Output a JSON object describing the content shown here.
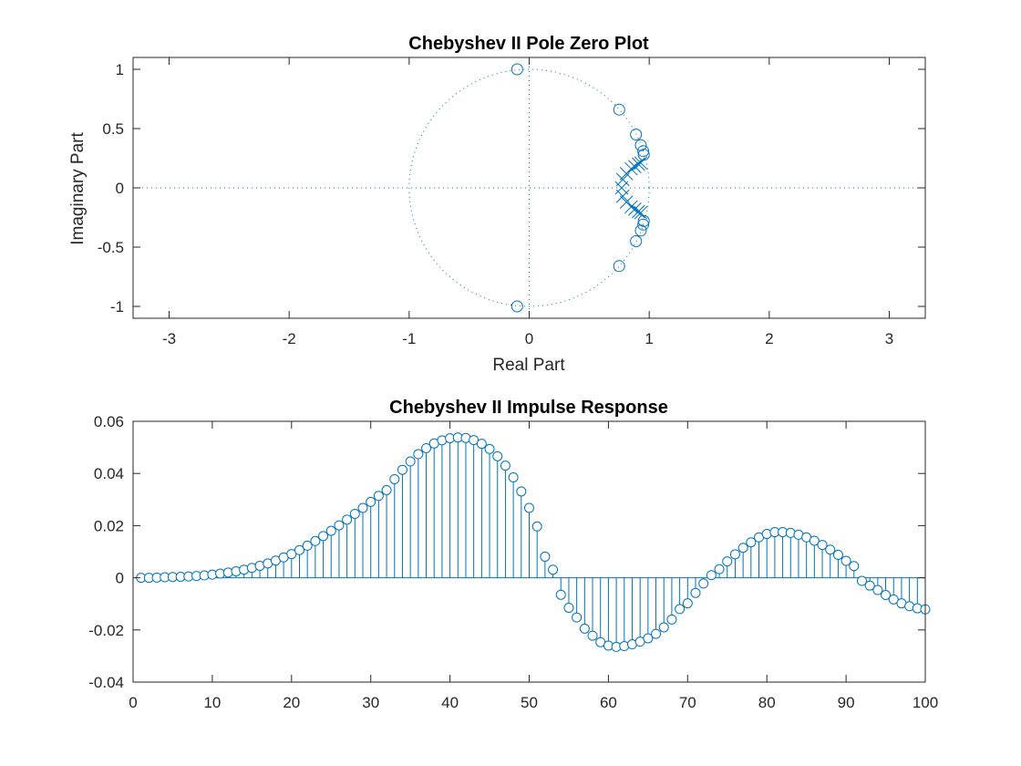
{
  "chart_data": [
    {
      "type": "scatter",
      "subtype": "pole-zero",
      "title": "Chebyshev II Pole Zero Plot",
      "xlabel": "Real Part",
      "ylabel": "Imaginary Part",
      "xlim": [
        -3.3,
        3.3
      ],
      "ylim": [
        -1.1,
        1.1
      ],
      "xticks": [
        -3,
        -2,
        -1,
        0,
        1,
        2,
        3
      ],
      "yticks": [
        -1,
        -0.5,
        0,
        0.5,
        1
      ],
      "xtick_labels": [
        "-3",
        "-2",
        "-1",
        "0",
        "1",
        "2",
        "3"
      ],
      "ytick_labels": [
        "-1",
        "-0.5",
        "0",
        "0.5",
        "1"
      ],
      "unit_circle": true,
      "zeros": [
        [
          -0.1,
          1.0
        ],
        [
          -0.1,
          -1.0
        ],
        [
          0.75,
          0.66
        ],
        [
          0.75,
          -0.66
        ],
        [
          0.89,
          0.45
        ],
        [
          0.89,
          -0.45
        ],
        [
          0.93,
          0.36
        ],
        [
          0.93,
          -0.36
        ],
        [
          0.95,
          0.31
        ],
        [
          0.95,
          -0.31
        ],
        [
          0.955,
          0.28
        ],
        [
          0.955,
          -0.28
        ]
      ],
      "poles": [
        [
          0.77,
          0.0
        ],
        [
          0.78,
          0.07
        ],
        [
          0.78,
          -0.07
        ],
        [
          0.81,
          0.12
        ],
        [
          0.81,
          -0.12
        ],
        [
          0.85,
          0.16
        ],
        [
          0.85,
          -0.16
        ],
        [
          0.88,
          0.18
        ],
        [
          0.88,
          -0.18
        ],
        [
          0.91,
          0.2
        ],
        [
          0.91,
          -0.2
        ],
        [
          0.93,
          0.21
        ],
        [
          0.93,
          -0.21
        ]
      ],
      "color": "#0072bd"
    },
    {
      "type": "stem",
      "title": "Chebyshev II Impulse Response",
      "xlim": [
        0,
        100
      ],
      "ylim": [
        -0.04,
        0.06
      ],
      "xticks": [
        0,
        10,
        20,
        30,
        40,
        50,
        60,
        70,
        80,
        90,
        100
      ],
      "yticks": [
        -0.04,
        -0.02,
        0,
        0.02,
        0.04,
        0.06
      ],
      "xtick_labels": [
        "0",
        "10",
        "20",
        "30",
        "40",
        "50",
        "60",
        "70",
        "80",
        "90",
        "100"
      ],
      "ytick_labels": [
        "-0.04",
        "-0.02",
        "0",
        "0.02",
        "0.04",
        "0.06"
      ],
      "x_start": 1,
      "values": [
        0,
        0,
        0.0001,
        0.0002,
        0.0003,
        0.0004,
        0.0005,
        0.0007,
        0.0009,
        0.0012,
        0.0016,
        0.002,
        0.0025,
        0.0031,
        0.0038,
        0.0046,
        0.0055,
        0.0066,
        0.0078,
        0.0091,
        0.0106,
        0.0123,
        0.0141,
        0.016,
        0.018,
        0.0201,
        0.0223,
        0.0245,
        0.0268,
        0.0291,
        0.0314,
        0.0336,
        0.0378,
        0.0414,
        0.0446,
        0.0474,
        0.0497,
        0.0515,
        0.0527,
        0.0535,
        0.0538,
        0.0536,
        0.0528,
        0.0514,
        0.0494,
        0.0466,
        0.043,
        0.0385,
        0.0331,
        0.0268,
        0.0197,
        0.0081,
        0.0031,
        -0.0065,
        -0.0115,
        -0.0152,
        -0.0195,
        -0.0222,
        -0.0247,
        -0.026,
        -0.0265,
        -0.0262,
        -0.0255,
        -0.0245,
        -0.0232,
        -0.0215,
        -0.019,
        -0.016,
        -0.012,
        -0.0098,
        -0.0058,
        -0.0022,
        0.001,
        0.0033,
        0.0063,
        0.009,
        0.0115,
        0.0136,
        0.0155,
        0.0168,
        0.0175,
        0.0175,
        0.0172,
        0.0165,
        0.0155,
        0.0142,
        0.0126,
        0.0108,
        0.0088,
        0.0065,
        0.0045,
        -0.0012,
        -0.003,
        -0.0047,
        -0.0066,
        -0.0083,
        -0.0098,
        -0.0109,
        -0.0117,
        -0.0121
      ],
      "color": "#0072bd"
    }
  ]
}
